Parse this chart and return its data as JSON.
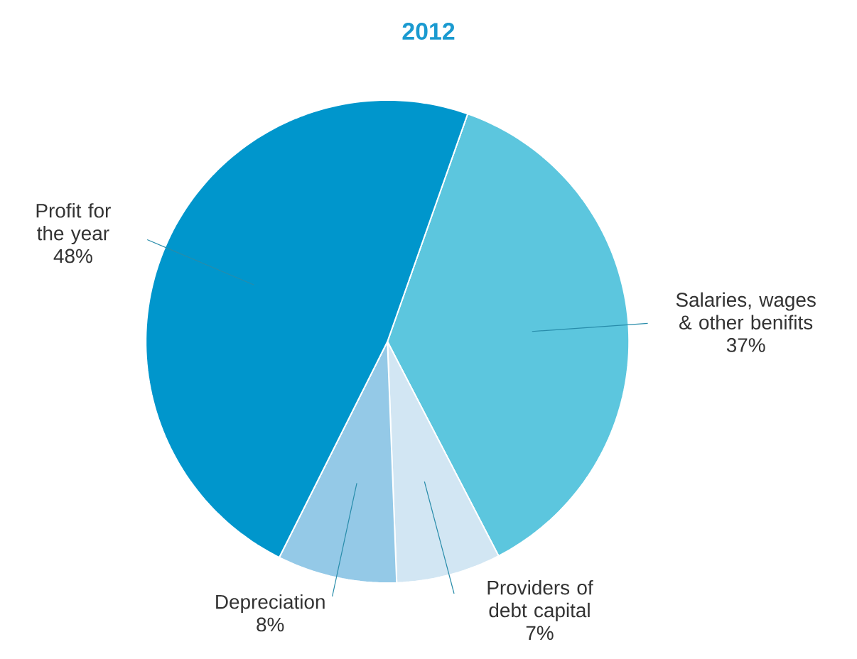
{
  "chart_data": {
    "type": "pie",
    "title": "2012",
    "categories": [
      "Salaries, wages & other benifits",
      "Providers of debt capital",
      "Depreciation",
      "Profit for the year"
    ],
    "values": [
      37,
      7,
      8,
      48
    ],
    "value_labels": [
      "37%",
      "7%",
      "8%",
      "48%"
    ],
    "colors": [
      "#5cc6de",
      "#d2e6f3",
      "#94c9e7",
      "#0096cc"
    ]
  }
}
